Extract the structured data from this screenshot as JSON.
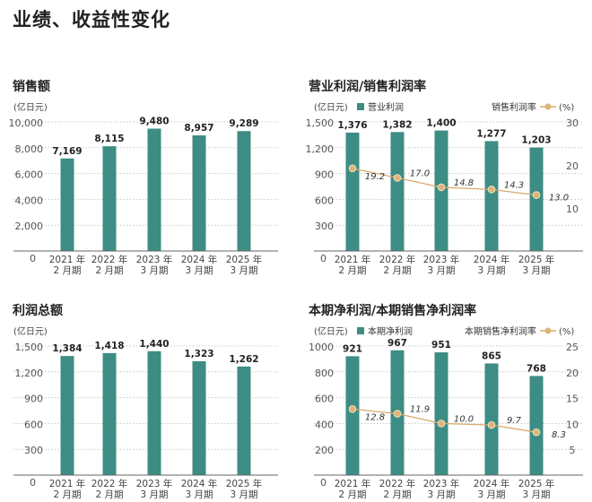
{
  "page_title": "业绩、收益性变化",
  "colors": {
    "bar": "#3d8d84",
    "line": "#d9aa6c",
    "marker": "#dcb478",
    "grid": "#c8c8c8"
  },
  "chart_data": [
    {
      "type": "bar",
      "title": "销售额",
      "unit_label": "(亿日元)",
      "categories": [
        "2021 年|2 月期",
        "2022 年|2 月期",
        "2023 年|3 月期",
        "2024 年|3 月期",
        "2025 年|3 月期"
      ],
      "values": [
        7169,
        8115,
        9480,
        8957,
        9289
      ],
      "value_labels": [
        "7,169",
        "8,115",
        "9,480",
        "8,957",
        "9,289"
      ],
      "ylim": [
        0,
        10000
      ],
      "yticks": [
        0,
        2000,
        4000,
        6000,
        8000,
        10000
      ],
      "ytick_labels": [
        "0",
        "2,000",
        "4,000",
        "6,000",
        "8,000",
        "10,000"
      ],
      "grid": true
    },
    {
      "type": "bar+line",
      "title": "营业利润/销售利润率",
      "unit_label": "(亿日元)",
      "bar_legend": "营业利润",
      "line_legend": "销售利润率",
      "line_unit": "(%)",
      "categories": [
        "2021 年|2 月期",
        "2022 年|2 月期",
        "2023 年|3 月期",
        "2024 年|3 月期",
        "2025 年|3 月期"
      ],
      "values": [
        1376,
        1382,
        1400,
        1277,
        1203
      ],
      "value_labels": [
        "1,376",
        "1,382",
        "1,400",
        "1,277",
        "1,203"
      ],
      "line_values": [
        19.2,
        17.0,
        14.8,
        14.3,
        13.0
      ],
      "line_labels": [
        "19.2",
        "17.0",
        "14.8",
        "14.3",
        "13.0"
      ],
      "ylim": [
        0,
        1500
      ],
      "yticks": [
        0,
        300,
        600,
        900,
        1200,
        1500
      ],
      "ytick_labels": [
        "0",
        "300",
        "600",
        "900",
        "1,200",
        "1,500"
      ],
      "y2lim": [
        0,
        30
      ],
      "y2ticks": [
        10,
        20,
        30
      ],
      "y2tick_labels": [
        "10",
        "20",
        "30"
      ],
      "grid": true,
      "legend": "top"
    },
    {
      "type": "bar",
      "title": "利润总额",
      "unit_label": "(亿日元)",
      "categories": [
        "2021 年|2 月期",
        "2022 年|2 月期",
        "2023 年|3 月期",
        "2024 年|3 月期",
        "2025 年|3 月期"
      ],
      "values": [
        1384,
        1418,
        1440,
        1323,
        1262
      ],
      "value_labels": [
        "1,384",
        "1,418",
        "1,440",
        "1,323",
        "1,262"
      ],
      "ylim": [
        0,
        1500
      ],
      "yticks": [
        0,
        300,
        600,
        900,
        1200,
        1500
      ],
      "ytick_labels": [
        "0",
        "300",
        "600",
        "900",
        "1,200",
        "1,500"
      ],
      "grid": true
    },
    {
      "type": "bar+line",
      "title": "本期净利润/本期销售净利润率",
      "unit_label": "(亿日元)",
      "bar_legend": "本期净利润",
      "line_legend": "本期销售净利润率",
      "line_unit": "(%)",
      "categories": [
        "2021 年|2 月期",
        "2022 年|2 月期",
        "2023 年|3 月期",
        "2024 年|3 月期",
        "2025 年|3 月期"
      ],
      "values": [
        921,
        967,
        951,
        865,
        768
      ],
      "value_labels": [
        "921",
        "967",
        "951",
        "865",
        "768"
      ],
      "line_values": [
        12.8,
        11.9,
        10.0,
        9.7,
        8.3
      ],
      "line_labels": [
        "12.8",
        "11.9",
        "10.0",
        "9.7",
        "8.3"
      ],
      "ylim": [
        0,
        1000
      ],
      "yticks": [
        0,
        200,
        400,
        600,
        800,
        1000
      ],
      "ytick_labels": [
        "0",
        "200",
        "400",
        "600",
        "800",
        "1000"
      ],
      "y2lim": [
        0,
        25
      ],
      "y2ticks": [
        5,
        10,
        15,
        20,
        25
      ],
      "y2tick_labels": [
        "5",
        "10",
        "15",
        "20",
        "25"
      ],
      "grid": true,
      "legend": "top"
    }
  ]
}
